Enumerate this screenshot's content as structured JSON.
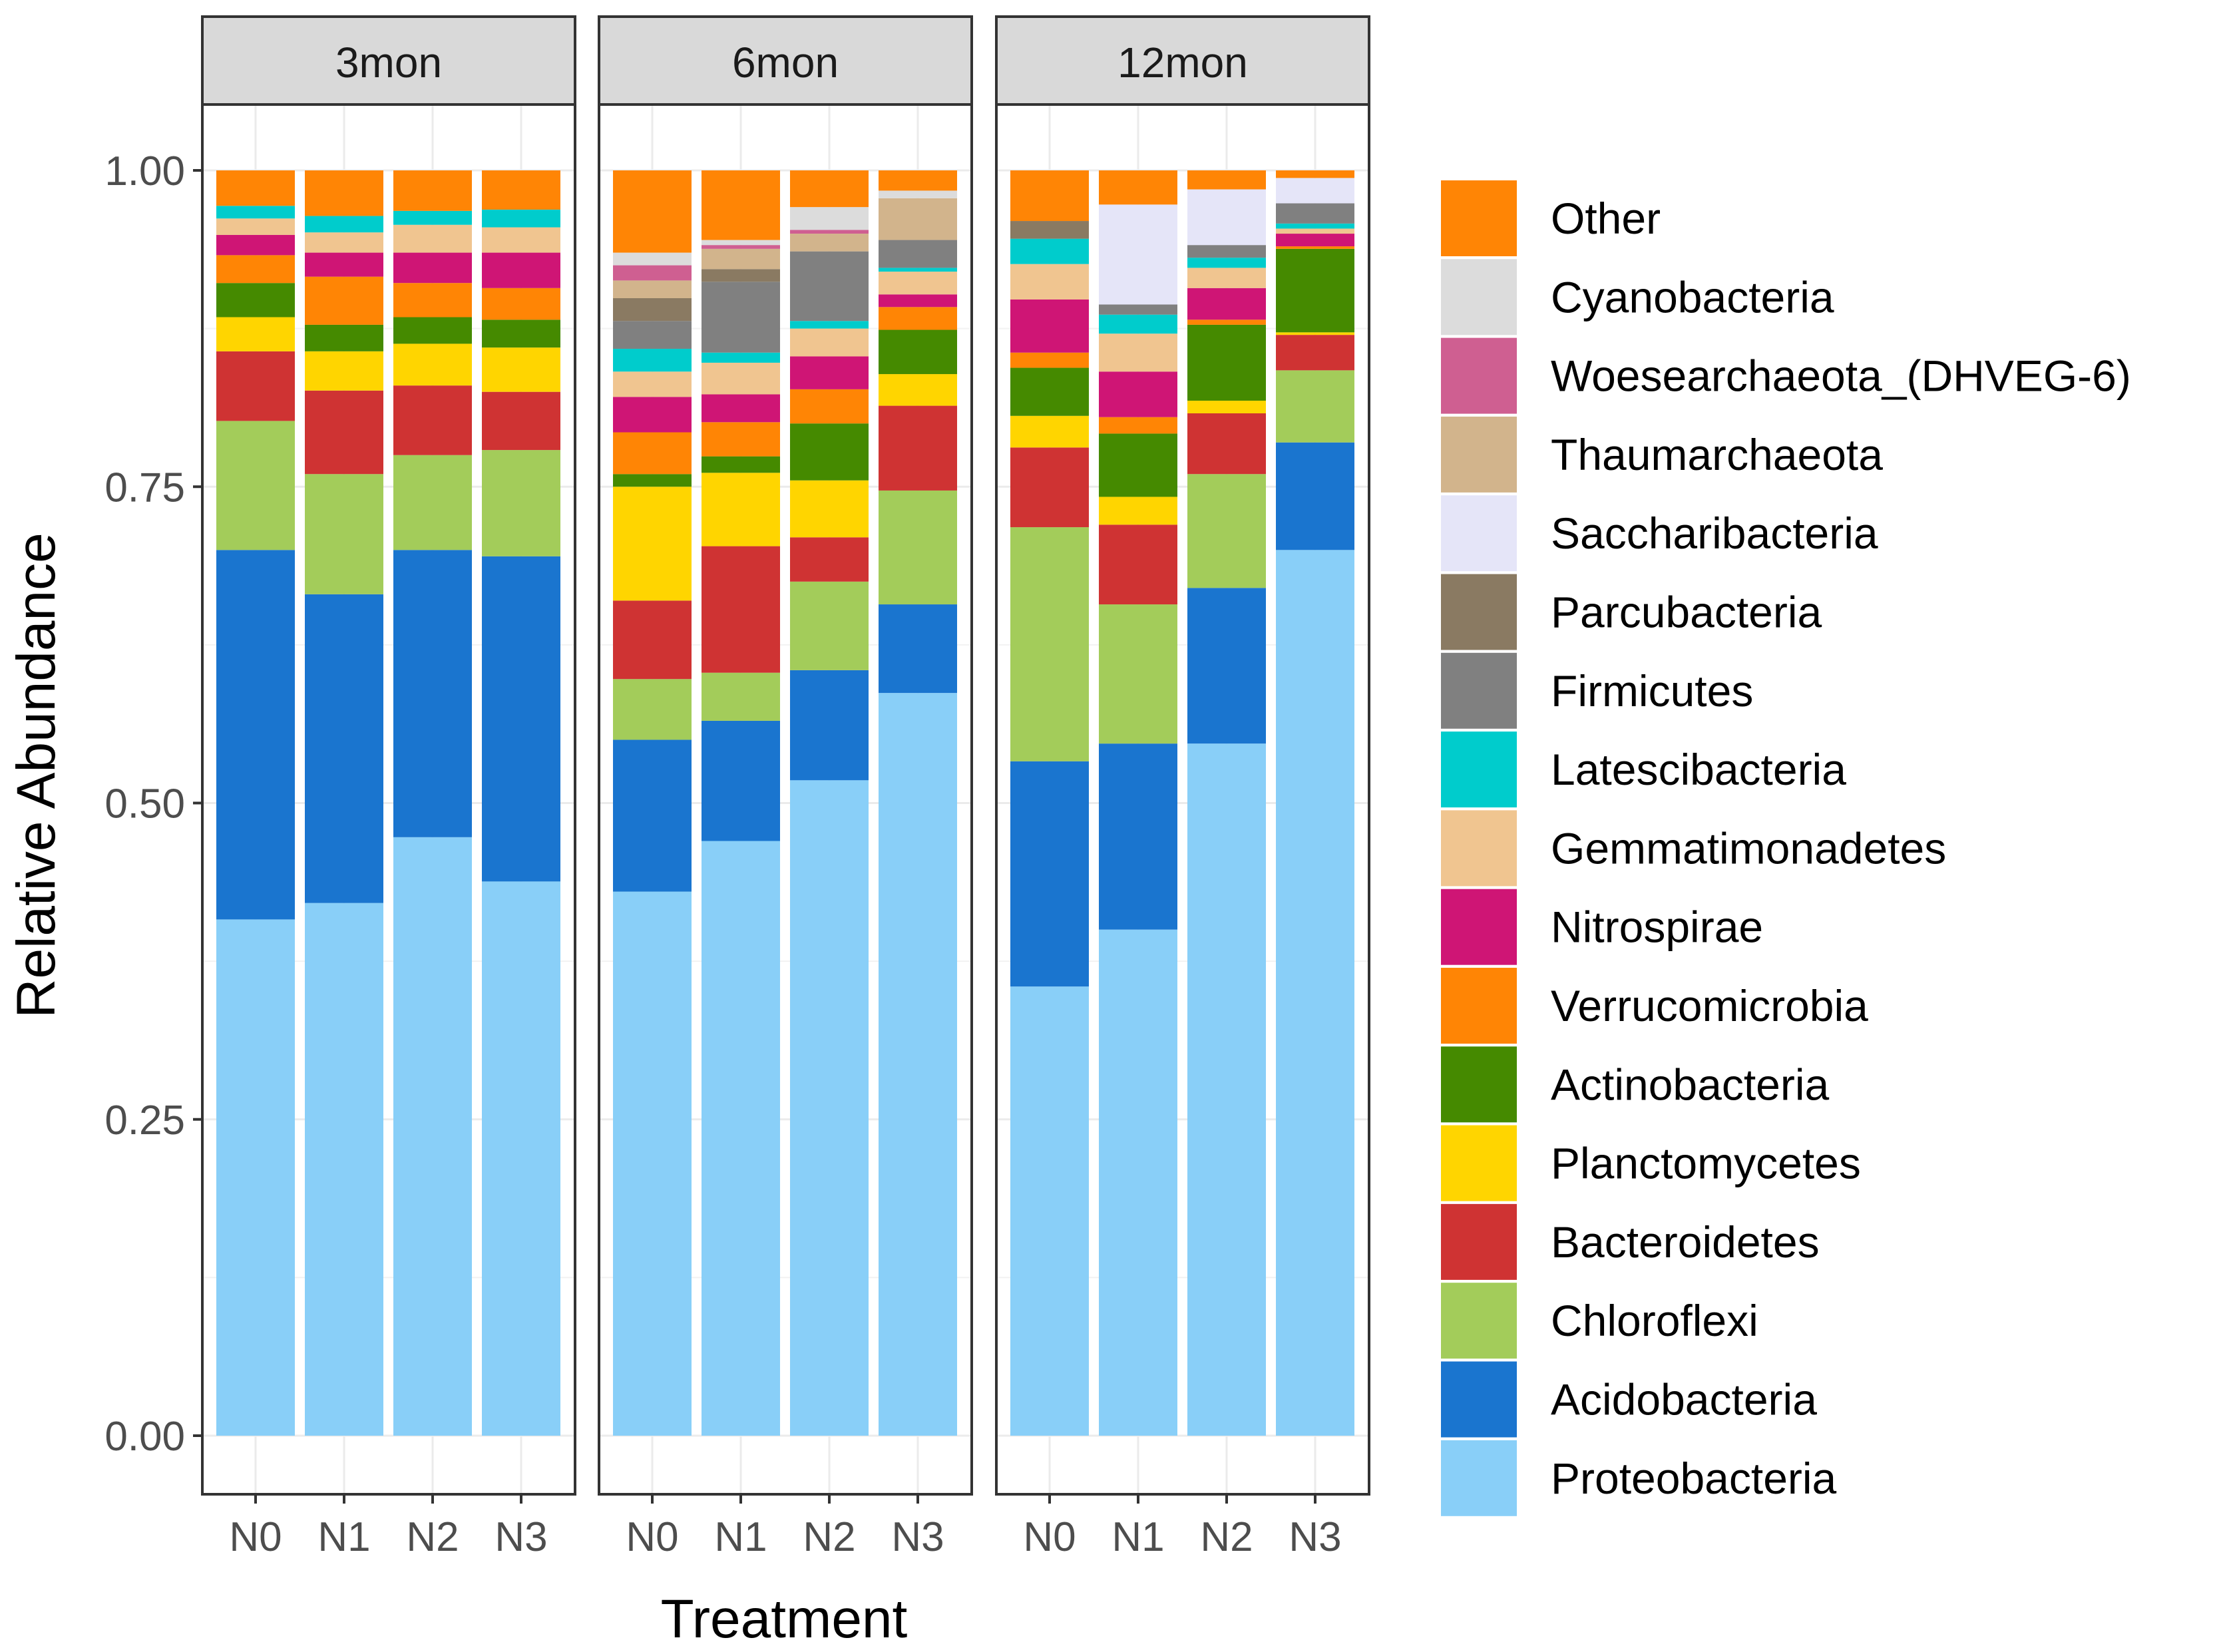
{
  "chart_data": {
    "type": "bar",
    "stacked": true,
    "xlabel": "Treatment",
    "ylabel": "Relative Abundance",
    "ylim": [
      0,
      1
    ],
    "y_ticks": [
      0,
      0.25,
      0.5,
      0.75,
      1
    ],
    "y_tick_labels": [
      "0.00",
      "0.25",
      "0.50",
      "0.75",
      "1.00"
    ],
    "categories": [
      "N0",
      "N1",
      "N2",
      "N3"
    ],
    "facets": [
      "3mon",
      "6mon",
      "12mon"
    ],
    "grid": true,
    "legend_position": "right",
    "stack_order_bottom_to_top": [
      "Proteobacteria",
      "Acidobacteria",
      "Chloroflexi",
      "Bacteroidetes",
      "Planctomycetes",
      "Actinobacteria",
      "Verrucomicrobia",
      "Nitrospirae",
      "Gemmatimonadetes",
      "Latescibacteria",
      "Firmicutes",
      "Parcubacteria",
      "Saccharibacteria",
      "Thaumarchaeota",
      "Woesearchaeota_(DHVEG-6)",
      "Cyanobacteria",
      "Other"
    ],
    "legend_order": [
      "Other",
      "Cyanobacteria",
      "Woesearchaeota_(DHVEG-6)",
      "Thaumarchaeota",
      "Saccharibacteria",
      "Parcubacteria",
      "Firmicutes",
      "Latescibacteria",
      "Gemmatimonadetes",
      "Nitrospirae",
      "Verrucomicrobia",
      "Actinobacteria",
      "Planctomycetes",
      "Bacteroidetes",
      "Chloroflexi",
      "Acidobacteria",
      "Proteobacteria"
    ],
    "colors": {
      "Proteobacteria": "#89CFF8",
      "Acidobacteria": "#1A75CF",
      "Chloroflexi": "#A3CC5A",
      "Bacteroidetes": "#CF3333",
      "Planctomycetes": "#FFD500",
      "Actinobacteria": "#458A00",
      "Verrucomicrobia": "#FF8505",
      "Nitrospirae": "#CF1575",
      "Gemmatimonadetes": "#F0C590",
      "Latescibacteria": "#00CCCC",
      "Firmicutes": "#808080",
      "Parcubacteria": "#8A7A62",
      "Saccharibacteria": "#E5E5F8",
      "Thaumarchaeota": "#D2B48C",
      "Woesearchaeota_(DHVEG-6)": "#CF5F91",
      "Cyanobacteria": "#DCDCDC",
      "Other": "#FF8505"
    },
    "data": {
      "3mon": {
        "N0": {
          "Proteobacteria": 0.408,
          "Acidobacteria": 0.292,
          "Chloroflexi": 0.102,
          "Bacteroidetes": 0.055,
          "Planctomycetes": 0.027,
          "Actinobacteria": 0.027,
          "Verrucomicrobia": 0.022,
          "Nitrospirae": 0.016,
          "Gemmatimonadetes": 0.013,
          "Latescibacteria": 0.01,
          "Other": 0.028
        },
        "N1": {
          "Proteobacteria": 0.421,
          "Acidobacteria": 0.244,
          "Chloroflexi": 0.095,
          "Bacteroidetes": 0.066,
          "Planctomycetes": 0.031,
          "Actinobacteria": 0.021,
          "Verrucomicrobia": 0.038,
          "Nitrospirae": 0.019,
          "Gemmatimonadetes": 0.016,
          "Latescibacteria": 0.013,
          "Other": 0.036
        },
        "N2": {
          "Proteobacteria": 0.473,
          "Acidobacteria": 0.227,
          "Chloroflexi": 0.075,
          "Bacteroidetes": 0.055,
          "Planctomycetes": 0.033,
          "Actinobacteria": 0.021,
          "Verrucomicrobia": 0.027,
          "Nitrospirae": 0.024,
          "Gemmatimonadetes": 0.022,
          "Latescibacteria": 0.011,
          "Other": 0.032
        },
        "N3": {
          "Proteobacteria": 0.438,
          "Acidobacteria": 0.257,
          "Chloroflexi": 0.084,
          "Bacteroidetes": 0.046,
          "Planctomycetes": 0.035,
          "Actinobacteria": 0.022,
          "Verrucomicrobia": 0.025,
          "Nitrospirae": 0.028,
          "Gemmatimonadetes": 0.02,
          "Latescibacteria": 0.014,
          "Other": 0.031
        }
      },
      "6mon": {
        "N0": {
          "Proteobacteria": 0.43,
          "Acidobacteria": 0.12,
          "Chloroflexi": 0.048,
          "Bacteroidetes": 0.062,
          "Planctomycetes": 0.09,
          "Actinobacteria": 0.01,
          "Verrucomicrobia": 0.033,
          "Nitrospirae": 0.028,
          "Gemmatimonadetes": 0.02,
          "Latescibacteria": 0.018,
          "Firmicutes": 0.022,
          "Parcubacteria": 0.018,
          "Thaumarchaeota": 0.014,
          "Woesearchaeota_(DHVEG-6)": 0.012,
          "Cyanobacteria": 0.01,
          "Other": 0.065
        },
        "N1": {
          "Proteobacteria": 0.47,
          "Acidobacteria": 0.095,
          "Chloroflexi": 0.038,
          "Bacteroidetes": 0.1,
          "Planctomycetes": 0.058,
          "Actinobacteria": 0.013,
          "Verrucomicrobia": 0.027,
          "Nitrospirae": 0.022,
          "Gemmatimonadetes": 0.025,
          "Latescibacteria": 0.008,
          "Firmicutes": 0.056,
          "Parcubacteria": 0.01,
          "Thaumarchaeota": 0.016,
          "Woesearchaeota_(DHVEG-6)": 0.003,
          "Cyanobacteria": 0.004,
          "Other": 0.055
        },
        "N2": {
          "Proteobacteria": 0.518,
          "Acidobacteria": 0.087,
          "Chloroflexi": 0.07,
          "Bacteroidetes": 0.035,
          "Planctomycetes": 0.045,
          "Actinobacteria": 0.045,
          "Verrucomicrobia": 0.027,
          "Nitrospirae": 0.026,
          "Gemmatimonadetes": 0.022,
          "Latescibacteria": 0.006,
          "Firmicutes": 0.055,
          "Thaumarchaeota": 0.014,
          "Woesearchaeota_(DHVEG-6)": 0.003,
          "Cyanobacteria": 0.018,
          "Other": 0.029
        },
        "N3": {
          "Proteobacteria": 0.587,
          "Acidobacteria": 0.07,
          "Chloroflexi": 0.09,
          "Bacteroidetes": 0.067,
          "Planctomycetes": 0.025,
          "Actinobacteria": 0.035,
          "Verrucomicrobia": 0.018,
          "Nitrospirae": 0.01,
          "Gemmatimonadetes": 0.018,
          "Latescibacteria": 0.003,
          "Firmicutes": 0.022,
          "Thaumarchaeota": 0.033,
          "Cyanobacteria": 0.006,
          "Other": 0.016
        }
      },
      "12mon": {
        "N0": {
          "Proteobacteria": 0.355,
          "Acidobacteria": 0.178,
          "Chloroflexi": 0.185,
          "Bacteroidetes": 0.063,
          "Planctomycetes": 0.025,
          "Actinobacteria": 0.038,
          "Verrucomicrobia": 0.012,
          "Nitrospirae": 0.042,
          "Gemmatimonadetes": 0.028,
          "Latescibacteria": 0.02,
          "Parcubacteria": 0.014,
          "Other": 0.04
        },
        "N1": {
          "Proteobacteria": 0.4,
          "Acidobacteria": 0.147,
          "Chloroflexi": 0.11,
          "Bacteroidetes": 0.063,
          "Planctomycetes": 0.022,
          "Actinobacteria": 0.05,
          "Verrucomicrobia": 0.013,
          "Nitrospirae": 0.036,
          "Gemmatimonadetes": 0.03,
          "Latescibacteria": 0.015,
          "Firmicutes": 0.008,
          "Saccharibacteria": 0.079,
          "Other": 0.027
        },
        "N2": {
          "Proteobacteria": 0.547,
          "Acidobacteria": 0.123,
          "Chloroflexi": 0.09,
          "Bacteroidetes": 0.048,
          "Planctomycetes": 0.01,
          "Actinobacteria": 0.06,
          "Verrucomicrobia": 0.004,
          "Nitrospirae": 0.025,
          "Gemmatimonadetes": 0.016,
          "Latescibacteria": 0.008,
          "Firmicutes": 0.01,
          "Saccharibacteria": 0.044,
          "Other": 0.015
        },
        "N3": {
          "Proteobacteria": 0.7,
          "Acidobacteria": 0.085,
          "Chloroflexi": 0.057,
          "Bacteroidetes": 0.028,
          "Planctomycetes": 0.002,
          "Actinobacteria": 0.066,
          "Verrucomicrobia": 0.002,
          "Nitrospirae": 0.01,
          "Gemmatimonadetes": 0.004,
          "Latescibacteria": 0.004,
          "Firmicutes": 0.016,
          "Saccharibacteria": 0.02,
          "Other": 0.006
        }
      }
    }
  }
}
